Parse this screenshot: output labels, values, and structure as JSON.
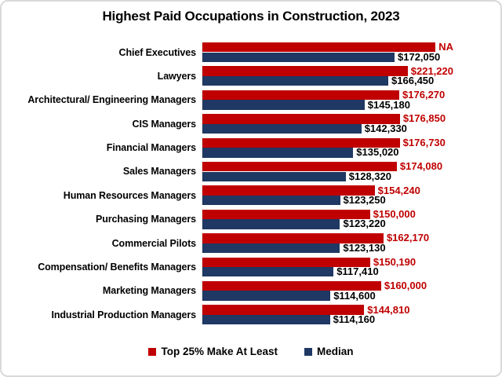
{
  "title": "Highest Paid Occupations in Construction, 2023",
  "colors": {
    "top25_bar": "#C00000",
    "median_bar": "#1F3864",
    "top25_value_label": "#C00000",
    "median_value_label": "#000000",
    "card_border": "#D9D9D9"
  },
  "legend": {
    "items": [
      {
        "label": "Top 25% Make At Least",
        "color": "#C00000"
      },
      {
        "label": "Median",
        "color": "#1F3864"
      }
    ]
  },
  "chart_data": {
    "type": "bar",
    "orientation": "horizontal",
    "title": "Highest Paid Occupations in Construction, 2023",
    "categories": [
      "Chief Executives",
      "Lawyers",
      "Architectural/ Engineering Managers",
      "CIS Managers",
      "Financial Managers",
      "Sales Managers",
      "Human Resources Managers",
      "Purchasing Managers",
      "Commercial Pilots",
      "Compensation/ Benefits Managers",
      "Marketing Managers",
      "Industrial Production Managers"
    ],
    "series": [
      {
        "name": "Top 25% Make At Least",
        "color": "#C00000",
        "values": [
          null,
          221220,
          176270,
          176850,
          176730,
          174080,
          154240,
          150000,
          162170,
          150190,
          160000,
          144810
        ],
        "value_labels": [
          "NA",
          "$221,220",
          "$176,270",
          "$176,850",
          "$176,730",
          "$174,080",
          "$154,240",
          "$150,000",
          "$162,170",
          "$150,190",
          "$160,000",
          "$144,810"
        ]
      },
      {
        "name": "Median",
        "color": "#1F3864",
        "values": [
          172050,
          166450,
          145180,
          142330,
          135020,
          128320,
          123250,
          123220,
          123130,
          117410,
          114600,
          114160
        ],
        "value_labels": [
          "$172,050",
          "$166,450",
          "$145,180",
          "$142,330",
          "$135,020",
          "$128,320",
          "$123,250",
          "$123,220",
          "$123,130",
          "$117,410",
          "$114,600",
          "$114,160"
        ]
      }
    ],
    "axis_max": 224700,
    "na_bar_value": 223300,
    "gridlines": false,
    "axes_ticks_shown": false,
    "value_labels_shown": true,
    "legend_position": "bottom"
  }
}
